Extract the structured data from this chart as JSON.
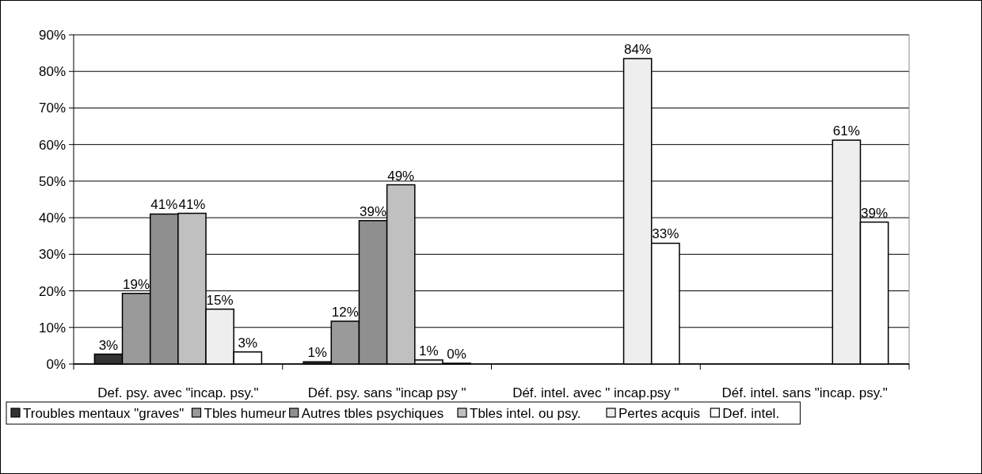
{
  "chart_data": {
    "type": "bar",
    "categories": [
      "Def. psy. avec \"incap. psy.\"",
      "Déf. psy. sans \"incap psy \"",
      "Déf. intel. avec \" incap.psy \"",
      "Déf. intel. sans \"incap. psy.\""
    ],
    "series": [
      {
        "name": "Troubles mentaux \"graves\"",
        "color": "#333333",
        "values": [
          2.7,
          0.6,
          null,
          null
        ],
        "value_labels": [
          "3%",
          "1%",
          null,
          null
        ]
      },
      {
        "name": "Tbles humeur",
        "color": "#9a9a9a",
        "values": [
          19.3,
          11.7,
          null,
          null
        ],
        "value_labels": [
          "19%",
          "12%",
          null,
          null
        ]
      },
      {
        "name": "Autres tbles psychiques",
        "color": "#8f8f8f",
        "values": [
          41,
          39.2,
          null,
          null
        ],
        "value_labels": [
          "41%",
          "39%",
          null,
          null
        ]
      },
      {
        "name": "Tbles intel. ou psy.",
        "color": "#c0c0c0",
        "values": [
          41.2,
          49,
          null,
          null
        ],
        "value_labels": [
          "41%",
          "49%",
          null,
          null
        ]
      },
      {
        "name": "Pertes acquis",
        "color": "#eeeeee",
        "values": [
          15,
          1.1,
          83.5,
          61.2
        ],
        "value_labels": [
          "15%",
          "1%",
          "84%",
          "61%"
        ]
      },
      {
        "name": "Def. intel.",
        "color": "#ffffff",
        "values": [
          3.3,
          0.2,
          33,
          38.8
        ],
        "value_labels": [
          "3%",
          "0%",
          "33%",
          "39%"
        ]
      }
    ],
    "ylim": [
      0,
      90
    ],
    "yticks": [
      {
        "value": 0,
        "label": "0%"
      },
      {
        "value": 10,
        "label": "10%"
      },
      {
        "value": 20,
        "label": "20%"
      },
      {
        "value": 30,
        "label": "30%"
      },
      {
        "value": 40,
        "label": "40%"
      },
      {
        "value": 50,
        "label": "50%"
      },
      {
        "value": 60,
        "label": "60%"
      },
      {
        "value": 70,
        "label": "70%"
      },
      {
        "value": 80,
        "label": "80%"
      },
      {
        "value": 90,
        "label": "90%"
      }
    ],
    "grid": "y",
    "legend": "bottom"
  }
}
